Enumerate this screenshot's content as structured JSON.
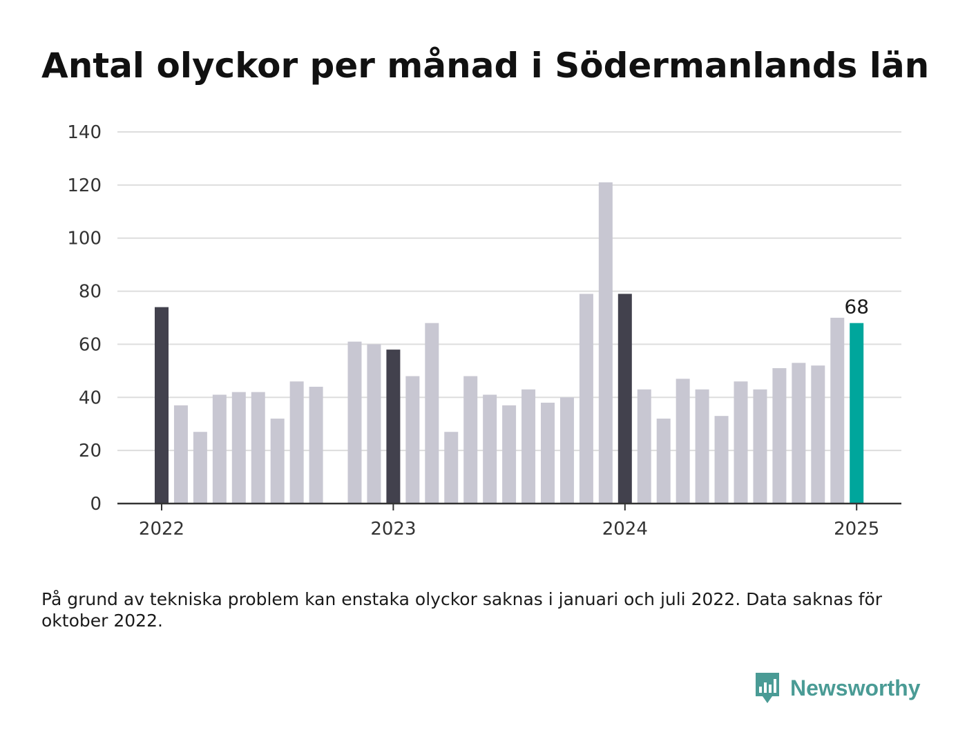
{
  "title": "Antal olyckor per månad i Södermanlands län",
  "footnote": "På grund av tekniska problem kan enstaka olyckor saknas i januari och juli 2022. Data saknas för oktober 2022.",
  "brand": {
    "name": "Newsworthy",
    "icon": "newsworthy-bar-chart-logo-icon",
    "color": "#4a9b95"
  },
  "colors": {
    "january": "#42414d",
    "other": "#c8c7d2",
    "latest": "#00a69c",
    "grid": "#dddddd",
    "axis": "#333333",
    "text": "#333333"
  },
  "chart_data": {
    "type": "bar",
    "title": "Antal olyckor per månad i Södermanlands län",
    "xlabel": "",
    "ylabel": "",
    "ylim": [
      0,
      140
    ],
    "yticks": [
      "0",
      "20",
      "40",
      "60",
      "80",
      "100",
      "120",
      "140"
    ],
    "xticks": [
      {
        "label": "2022",
        "at": "2022-01"
      },
      {
        "label": "2023",
        "at": "2023-01"
      },
      {
        "label": "2024",
        "at": "2024-01"
      },
      {
        "label": "2025",
        "at": "2025-01"
      }
    ],
    "grid": true,
    "legend": "none",
    "highlight_label": {
      "at": "2025-01",
      "text": "68"
    },
    "points": [
      {
        "month": "2022-01",
        "value": 74,
        "kind": "january"
      },
      {
        "month": "2022-02",
        "value": 37,
        "kind": "other"
      },
      {
        "month": "2022-03",
        "value": 27,
        "kind": "other"
      },
      {
        "month": "2022-04",
        "value": 41,
        "kind": "other"
      },
      {
        "month": "2022-05",
        "value": 42,
        "kind": "other"
      },
      {
        "month": "2022-06",
        "value": 42,
        "kind": "other"
      },
      {
        "month": "2022-07",
        "value": 32,
        "kind": "other"
      },
      {
        "month": "2022-08",
        "value": 46,
        "kind": "other"
      },
      {
        "month": "2022-09",
        "value": 44,
        "kind": "other"
      },
      {
        "month": "2022-10",
        "value": null,
        "kind": "missing"
      },
      {
        "month": "2022-11",
        "value": 61,
        "kind": "other"
      },
      {
        "month": "2022-12",
        "value": 60,
        "kind": "other"
      },
      {
        "month": "2023-01",
        "value": 58,
        "kind": "january"
      },
      {
        "month": "2023-02",
        "value": 48,
        "kind": "other"
      },
      {
        "month": "2023-03",
        "value": 68,
        "kind": "other"
      },
      {
        "month": "2023-04",
        "value": 27,
        "kind": "other"
      },
      {
        "month": "2023-05",
        "value": 48,
        "kind": "other"
      },
      {
        "month": "2023-06",
        "value": 41,
        "kind": "other"
      },
      {
        "month": "2023-07",
        "value": 37,
        "kind": "other"
      },
      {
        "month": "2023-08",
        "value": 43,
        "kind": "other"
      },
      {
        "month": "2023-09",
        "value": 38,
        "kind": "other"
      },
      {
        "month": "2023-10",
        "value": 40,
        "kind": "other"
      },
      {
        "month": "2023-11",
        "value": 79,
        "kind": "other"
      },
      {
        "month": "2023-12",
        "value": 121,
        "kind": "other"
      },
      {
        "month": "2024-01",
        "value": 79,
        "kind": "january"
      },
      {
        "month": "2024-02",
        "value": 43,
        "kind": "other"
      },
      {
        "month": "2024-03",
        "value": 32,
        "kind": "other"
      },
      {
        "month": "2024-04",
        "value": 47,
        "kind": "other"
      },
      {
        "month": "2024-05",
        "value": 43,
        "kind": "other"
      },
      {
        "month": "2024-06",
        "value": 33,
        "kind": "other"
      },
      {
        "month": "2024-07",
        "value": 46,
        "kind": "other"
      },
      {
        "month": "2024-08",
        "value": 43,
        "kind": "other"
      },
      {
        "month": "2024-09",
        "value": 51,
        "kind": "other"
      },
      {
        "month": "2024-10",
        "value": 53,
        "kind": "other"
      },
      {
        "month": "2024-11",
        "value": 52,
        "kind": "other"
      },
      {
        "month": "2024-12",
        "value": 70,
        "kind": "other"
      },
      {
        "month": "2025-01",
        "value": 68,
        "kind": "latest"
      }
    ]
  }
}
